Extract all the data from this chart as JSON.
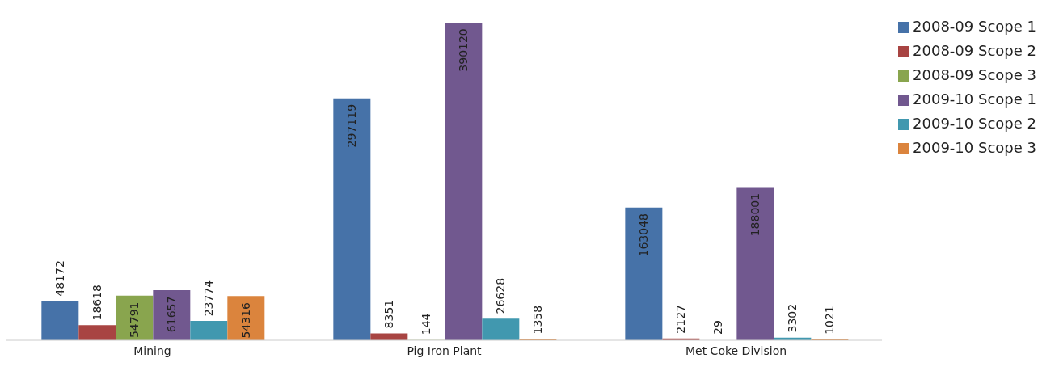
{
  "chart_data": {
    "type": "bar",
    "categories": [
      "Mining",
      "Pig Iron Plant",
      "Met Coke Division"
    ],
    "series": [
      {
        "name": "2008-09 Scope 1",
        "color": "#4672a8",
        "values": [
          48172,
          297119,
          163048
        ]
      },
      {
        "name": "2008-09 Scope 2",
        "color": "#a84442",
        "values": [
          18618,
          8351,
          2127
        ]
      },
      {
        "name": "2008-09 Scope 3",
        "color": "#89a54e",
        "values": [
          54791,
          144,
          29
        ]
      },
      {
        "name": "2009-10 Scope 1",
        "color": "#71588f",
        "values": [
          61657,
          390120,
          188001
        ]
      },
      {
        "name": "2009-10 Scope 2",
        "color": "#4198af",
        "values": [
          23774,
          26628,
          3302
        ]
      },
      {
        "name": "2009-10 Scope 3",
        "color": "#db843d",
        "values": [
          54316,
          1358,
          1021
        ]
      }
    ],
    "data_labels": true,
    "legend": "top right",
    "grid": false,
    "tick_labels": "x"
  }
}
